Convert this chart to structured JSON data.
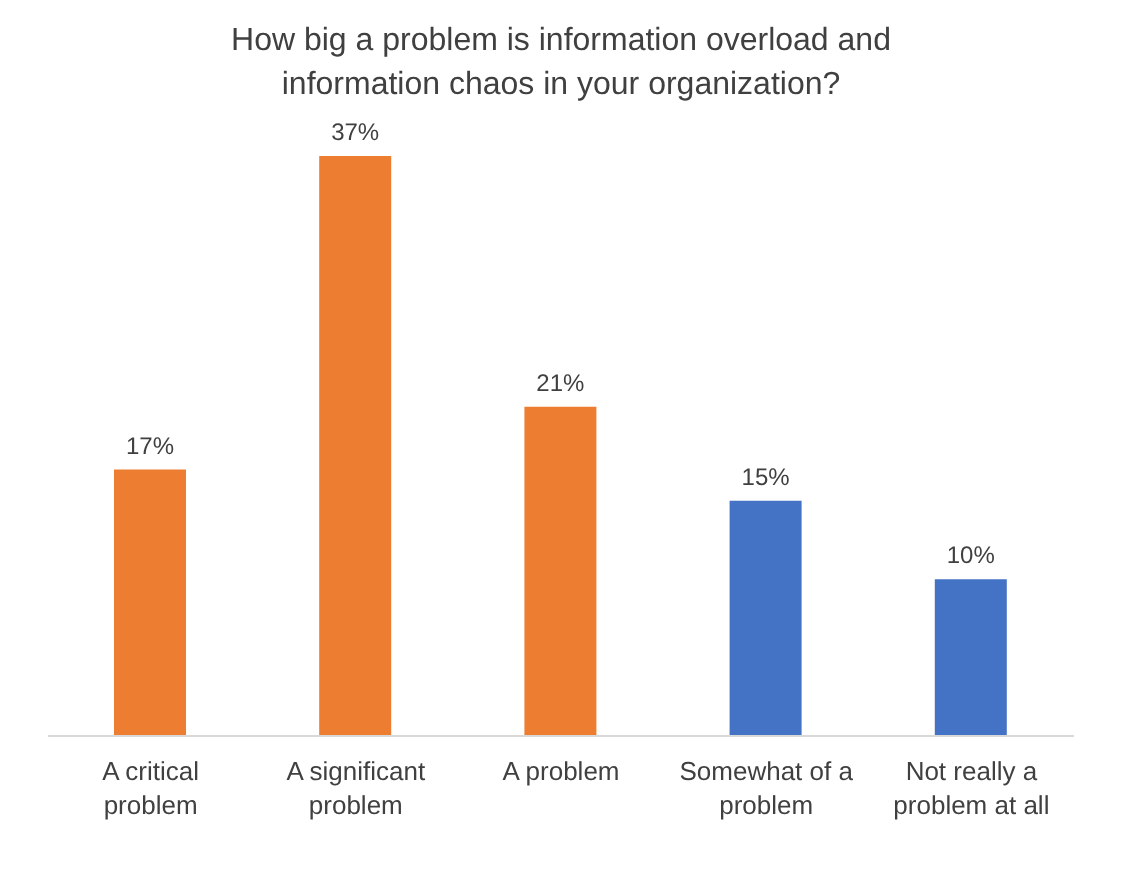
{
  "chart_data": {
    "type": "bar",
    "title": "How big a problem is information overload and information chaos in your organization?",
    "categories": [
      "A critical problem",
      "A significant problem",
      "A problem",
      "Somewhat of a problem",
      "Not really a problem at all"
    ],
    "values": [
      17,
      37,
      21,
      15,
      10
    ],
    "colors": [
      "#ed7d31",
      "#ed7d31",
      "#ed7d31",
      "#4472c4",
      "#4472c4"
    ],
    "value_labels": [
      "17%",
      "37%",
      "21%",
      "15%",
      "10%"
    ],
    "grid": false,
    "legend": false
  }
}
